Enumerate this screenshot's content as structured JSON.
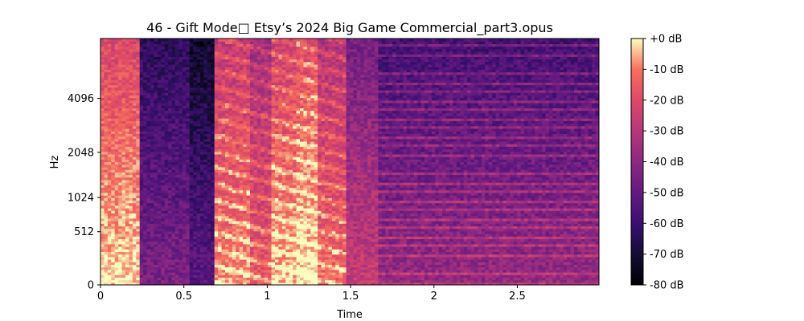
{
  "chart_data": {
    "type": "heatmap",
    "title": "46 - Gift Mode□ Etsy’s 2024 Big Game Commercial_part3.opus",
    "xlabel": "Time",
    "ylabel": "Hz",
    "x_ticks": [
      {
        "value": 0,
        "label": "0"
      },
      {
        "value": 0.5,
        "label": "0.5"
      },
      {
        "value": 1,
        "label": "1"
      },
      {
        "value": 1.5,
        "label": "1.5"
      },
      {
        "value": 2,
        "label": "2"
      },
      {
        "value": 2.5,
        "label": "2.5"
      }
    ],
    "y_ticks": [
      {
        "value": 0,
        "label": "0"
      },
      {
        "value": 512,
        "label": "512"
      },
      {
        "value": 1024,
        "label": "1024"
      },
      {
        "value": 2048,
        "label": "2048"
      },
      {
        "value": 4096,
        "label": "4096"
      }
    ],
    "xlim": [
      0,
      2.99
    ],
    "ylim": [
      0,
      8192
    ],
    "y_scale": "mel",
    "colormap": "magma",
    "colorbar": {
      "label_ticks": [
        {
          "value": 0,
          "label": "+0 dB"
        },
        {
          "value": -10,
          "label": "-10 dB"
        },
        {
          "value": -20,
          "label": "-20 dB"
        },
        {
          "value": -30,
          "label": "-30 dB"
        },
        {
          "value": -40,
          "label": "-40 dB"
        },
        {
          "value": -50,
          "label": "-50 dB"
        },
        {
          "value": -60,
          "label": "-60 dB"
        },
        {
          "value": -70,
          "label": "-70 dB"
        },
        {
          "value": -80,
          "label": "-80 dB"
        }
      ],
      "range": [
        -80,
        0
      ]
    },
    "segments": [
      {
        "t0": 0.0,
        "t1": 0.24,
        "level": -15
      },
      {
        "t0": 0.24,
        "t1": 0.53,
        "level": -58
      },
      {
        "t0": 0.53,
        "t1": 0.68,
        "level": -66
      },
      {
        "t0": 0.68,
        "t1": 0.9,
        "level": -22
      },
      {
        "t0": 0.9,
        "t1": 1.02,
        "level": -30
      },
      {
        "t0": 1.02,
        "t1": 1.17,
        "level": -18
      },
      {
        "t0": 1.17,
        "t1": 1.3,
        "level": -14
      },
      {
        "t0": 1.3,
        "t1": 1.48,
        "level": -26
      },
      {
        "t0": 1.48,
        "t1": 1.67,
        "level": -40
      },
      {
        "t0": 1.67,
        "t1": 2.99,
        "level": -52
      }
    ]
  }
}
